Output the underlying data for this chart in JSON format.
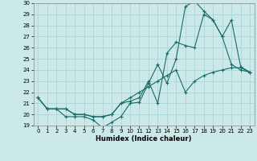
{
  "xlabel": "Humidex (Indice chaleur)",
  "bg_color": "#cce9e9",
  "grid_color": "#aed4d4",
  "line_color": "#1a6b6b",
  "xlim": [
    -0.5,
    23.5
  ],
  "ylim": [
    19,
    30
  ],
  "yticks": [
    19,
    20,
    21,
    22,
    23,
    24,
    25,
    26,
    27,
    28,
    29,
    30
  ],
  "xticks": [
    0,
    1,
    2,
    3,
    4,
    5,
    6,
    7,
    8,
    9,
    10,
    11,
    12,
    13,
    14,
    15,
    16,
    17,
    18,
    19,
    20,
    21,
    22,
    23
  ],
  "line1_x": [
    0,
    1,
    2,
    3,
    4,
    5,
    6,
    7,
    8,
    9,
    10,
    11,
    12,
    13,
    14,
    15,
    16,
    17,
    18,
    19,
    20,
    21,
    22,
    23
  ],
  "line1_y": [
    21.5,
    20.5,
    20.5,
    19.8,
    19.8,
    19.8,
    19.5,
    18.8,
    19.3,
    19.8,
    21.0,
    21.1,
    22.8,
    24.5,
    22.8,
    25.0,
    29.7,
    30.2,
    29.3,
    28.5,
    27.0,
    24.5,
    24.0,
    23.8
  ],
  "line2_x": [
    0,
    1,
    2,
    3,
    4,
    5,
    6,
    7,
    8,
    9,
    10,
    11,
    12,
    13,
    14,
    15,
    16,
    17,
    18,
    19,
    20,
    21,
    22,
    23
  ],
  "line2_y": [
    21.5,
    20.5,
    20.5,
    20.5,
    20.0,
    20.0,
    19.8,
    19.8,
    20.0,
    21.0,
    21.2,
    21.5,
    23.0,
    21.0,
    25.5,
    26.5,
    26.2,
    26.0,
    29.0,
    28.5,
    27.0,
    28.5,
    24.3,
    23.8
  ],
  "line3_x": [
    0,
    1,
    2,
    3,
    4,
    5,
    6,
    7,
    8,
    9,
    10,
    11,
    12,
    13,
    14,
    15,
    16,
    17,
    18,
    19,
    20,
    21,
    22,
    23
  ],
  "line3_y": [
    21.5,
    20.5,
    20.5,
    20.5,
    20.0,
    20.0,
    19.8,
    19.8,
    20.0,
    21.0,
    21.5,
    22.0,
    22.5,
    23.0,
    23.5,
    24.0,
    22.0,
    23.0,
    23.5,
    23.8,
    24.0,
    24.2,
    24.2,
    23.8
  ],
  "tick_fontsize": 5,
  "xlabel_fontsize": 6
}
